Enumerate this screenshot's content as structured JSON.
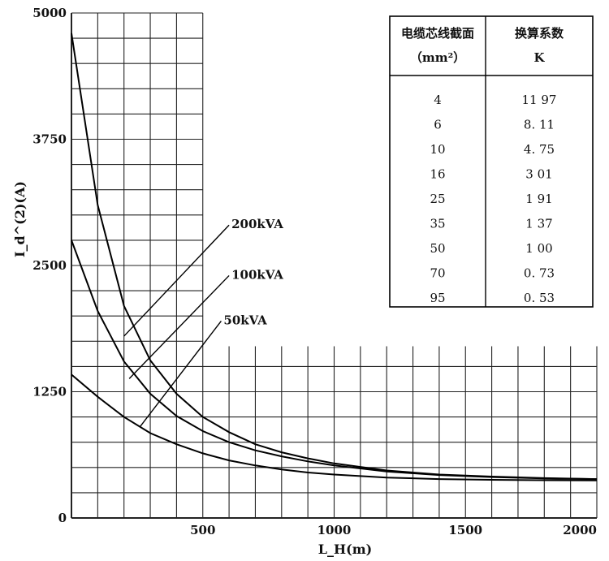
{
  "chart_data": {
    "type": "line",
    "title": "",
    "xlabel": "L_H(m)",
    "ylabel": "I_d^(2)(A)",
    "xlim": [
      0,
      2000
    ],
    "ylim": [
      0,
      5000
    ],
    "xticks": [
      "500",
      "1000",
      "1500",
      "2000"
    ],
    "yticks": [
      "0",
      "1250",
      "2500",
      "3750",
      "5000"
    ],
    "grid": true,
    "series": [
      {
        "name": "200kVA",
        "x": [
          0,
          100,
          200,
          300,
          400,
          500,
          600,
          700,
          800,
          900,
          1000,
          1200,
          1400,
          1600,
          1800,
          2000
        ],
        "y": [
          4800,
          3100,
          2100,
          1560,
          1230,
          1000,
          850,
          730,
          650,
          590,
          540,
          470,
          430,
          410,
          395,
          385
        ]
      },
      {
        "name": "100kVA",
        "x": [
          0,
          100,
          200,
          300,
          400,
          500,
          600,
          700,
          800,
          900,
          1000,
          1200,
          1400,
          1600,
          1800,
          2000
        ],
        "y": [
          2750,
          2050,
          1550,
          1230,
          1010,
          860,
          750,
          670,
          610,
          560,
          520,
          460,
          425,
          405,
          392,
          385
        ]
      },
      {
        "name": "50kVA",
        "x": [
          0,
          100,
          200,
          300,
          400,
          500,
          600,
          700,
          800,
          900,
          1000,
          1200,
          1400,
          1600,
          1800,
          2000
        ],
        "y": [
          1420,
          1200,
          1000,
          840,
          730,
          640,
          570,
          520,
          480,
          450,
          430,
          400,
          385,
          378,
          374,
          372
        ]
      }
    ]
  },
  "table": {
    "headers": [
      {
        "line1": "电缆芯线截面",
        "line2": "（mm²）"
      },
      {
        "line1": "换算系数",
        "line2": "K"
      }
    ],
    "rows": [
      [
        "4",
        "11 97"
      ],
      [
        "6",
        "8. 11"
      ],
      [
        "10",
        "4. 75"
      ],
      [
        "16",
        "3 01"
      ],
      [
        "25",
        "1 91"
      ],
      [
        "35",
        "1 37"
      ],
      [
        "50",
        "1 00"
      ],
      [
        "70",
        "0. 73"
      ],
      [
        "95",
        "0. 53"
      ]
    ]
  }
}
